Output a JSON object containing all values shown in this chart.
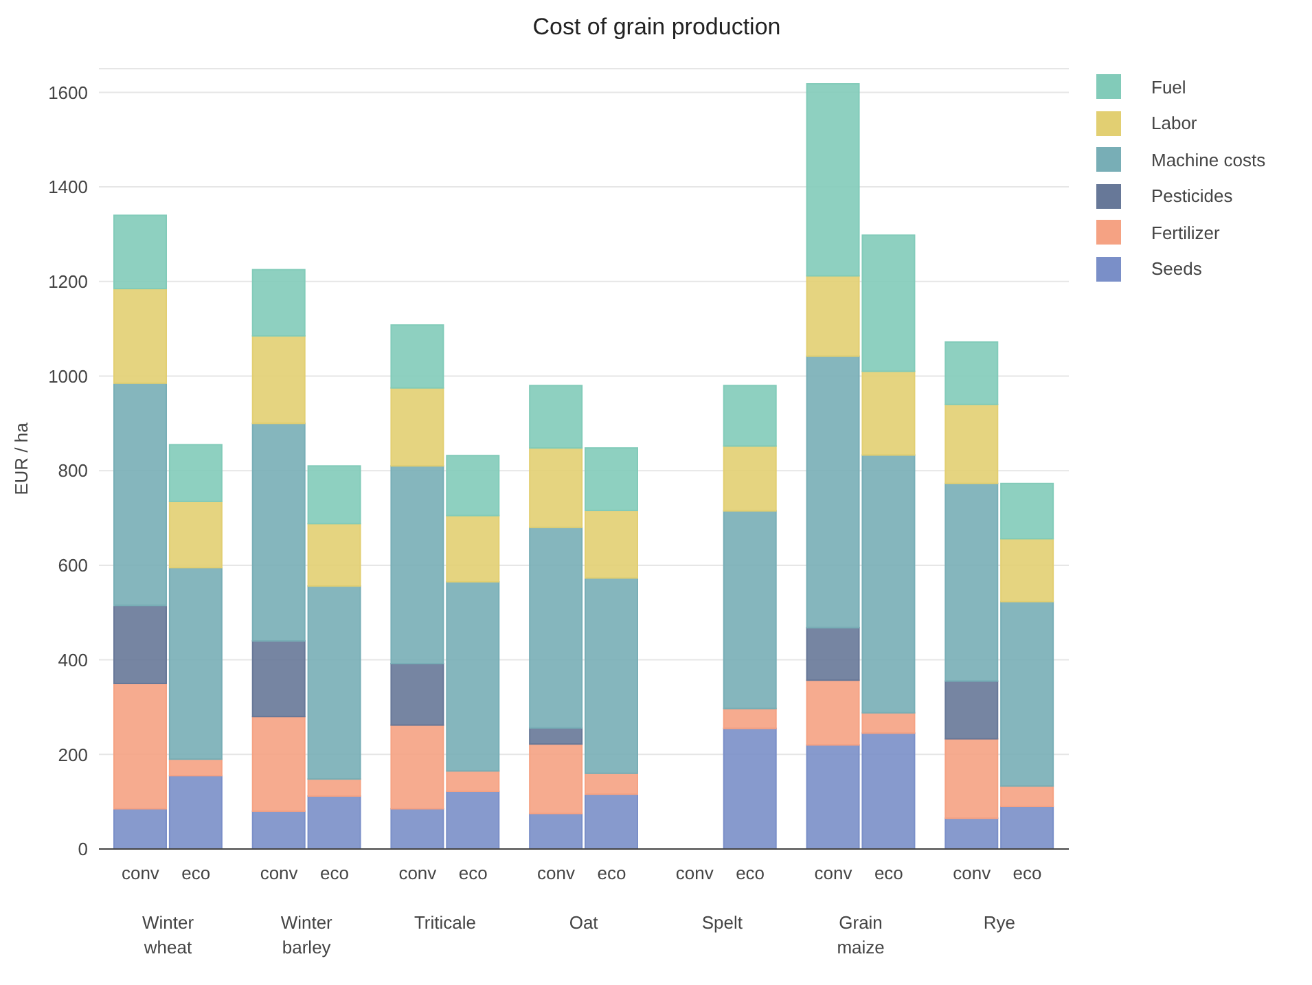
{
  "chart_data": {
    "type": "bar",
    "title": "Cost of grain production",
    "ylabel": "EUR / ha",
    "stacked": true,
    "categories": [
      "conv",
      "eco",
      "conv",
      "eco",
      "conv",
      "eco",
      "conv",
      "eco",
      "conv",
      "eco",
      "conv",
      "eco",
      "conv",
      "eco"
    ],
    "annotations": [
      "Winter wheat",
      "Winter barley",
      "Triticale",
      "Oat",
      "Spelt",
      "Grain maize",
      "Rye"
    ],
    "series": [
      {
        "name": "Seeds",
        "color": "#7a8fc8",
        "values": [
          85,
          155,
          80,
          112,
          85,
          122,
          75,
          116,
          0,
          255,
          220,
          245,
          65,
          90
        ]
      },
      {
        "name": "Fertilizer",
        "color": "#f5a283",
        "values": [
          265,
          35,
          200,
          36,
          177,
          43,
          147,
          44,
          0,
          42,
          137,
          43,
          168,
          43
        ]
      },
      {
        "name": "Pesticides",
        "color": "#677898",
        "values": [
          165,
          0,
          160,
          0,
          130,
          0,
          34,
          0,
          0,
          0,
          111,
          0,
          122,
          0
        ]
      },
      {
        "name": "Machine costs",
        "color": "#78aeb6",
        "values": [
          470,
          405,
          460,
          408,
          418,
          400,
          424,
          413,
          0,
          418,
          574,
          545,
          418,
          390
        ]
      },
      {
        "name": "Labor",
        "color": "#e2cf72",
        "values": [
          200,
          140,
          185,
          132,
          165,
          140,
          168,
          143,
          0,
          137,
          170,
          177,
          167,
          133
        ]
      },
      {
        "name": "Fuel",
        "color": "#82cbb9",
        "values": [
          155,
          120,
          140,
          122,
          133,
          127,
          132,
          132,
          0,
          128,
          406,
          288,
          132,
          117
        ]
      }
    ],
    "ylim": [
      0,
      1650
    ],
    "yticks": [
      0,
      200,
      400,
      600,
      800,
      1000,
      1200,
      1400,
      1600
    ],
    "grid": "y",
    "legend": "top right"
  }
}
